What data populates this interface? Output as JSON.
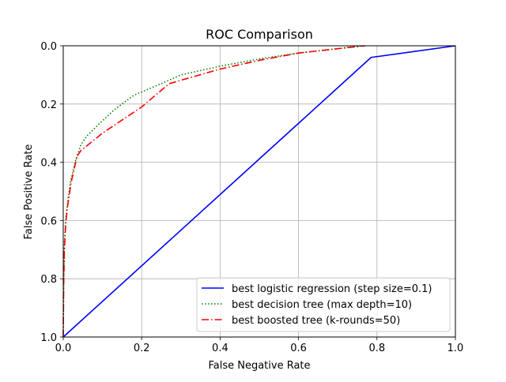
{
  "chart_data": {
    "type": "line",
    "title": "ROC Comparison",
    "xlabel": "False Negative Rate",
    "ylabel": "False Positive Rate",
    "xlim": [
      0,
      1
    ],
    "ylim": [
      0,
      1
    ],
    "y_inverted": true,
    "grid": true,
    "legend_position": "lower-right",
    "x_ticks": [
      "0.0",
      "0.2",
      "0.4",
      "0.6",
      "0.8",
      "1.0"
    ],
    "y_ticks": [
      "0.0",
      "0.2",
      "0.4",
      "0.6",
      "0.8",
      "1.0"
    ],
    "series": [
      {
        "name": "best logistic regression (step size=0.1)",
        "color": "#0000ff",
        "dash": "solid",
        "x": [
          0.0,
          0.785,
          1.0
        ],
        "y": [
          1.0,
          0.04,
          0.0
        ]
      },
      {
        "name": "best decision tree (max depth=10)",
        "color": "#008000",
        "dash": "dotted",
        "x": [
          0.0,
          0.001,
          0.003,
          0.006,
          0.01,
          0.018,
          0.03,
          0.045,
          0.06,
          0.09,
          0.13,
          0.18,
          0.25,
          0.3,
          0.4,
          0.5,
          0.6,
          0.7,
          0.76
        ],
        "y": [
          1.0,
          0.82,
          0.68,
          0.6,
          0.55,
          0.47,
          0.4,
          0.34,
          0.31,
          0.27,
          0.22,
          0.17,
          0.13,
          0.1,
          0.07,
          0.045,
          0.025,
          0.01,
          0.0
        ]
      },
      {
        "name": "best boosted tree (k-rounds=50)",
        "color": "#ff0000",
        "dash": "dashdot",
        "x": [
          0.0,
          0.001,
          0.003,
          0.006,
          0.01,
          0.02,
          0.035,
          0.045,
          0.1,
          0.2,
          0.27,
          0.4,
          0.5,
          0.6,
          0.7,
          0.77
        ],
        "y": [
          1.0,
          0.83,
          0.7,
          0.62,
          0.56,
          0.47,
          0.38,
          0.36,
          0.3,
          0.21,
          0.13,
          0.08,
          0.05,
          0.025,
          0.01,
          0.0
        ]
      }
    ]
  }
}
